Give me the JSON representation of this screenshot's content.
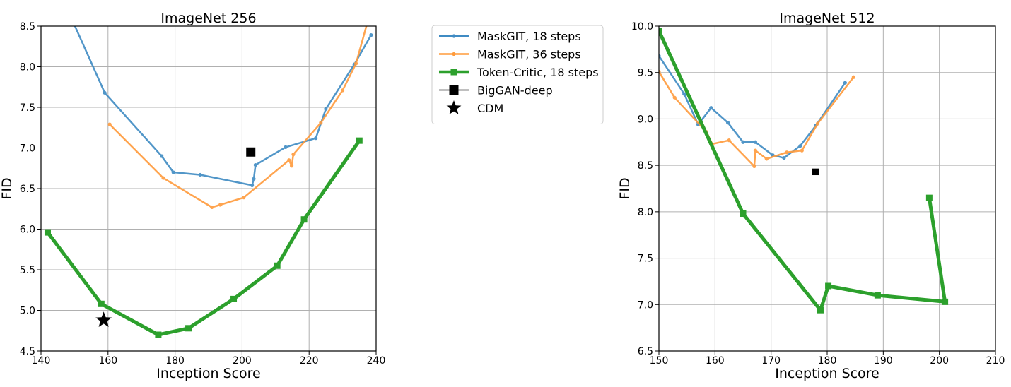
{
  "chart_data": [
    {
      "type": "line",
      "title": "ImageNet 256",
      "xlabel": "Inception Score",
      "ylabel": "FID",
      "xlim": [
        140,
        240
      ],
      "ylim": [
        4.5,
        8.5
      ],
      "xticks": [
        140,
        160,
        180,
        200,
        220,
        240
      ],
      "yticks": [
        4.5,
        5.0,
        5.5,
        6.0,
        6.5,
        7.0,
        7.5,
        8.0,
        8.5
      ],
      "xtick_labels": [
        "140",
        "160",
        "180",
        "200",
        "220",
        "240"
      ],
      "ytick_labels": [
        "4.5",
        "5.0",
        "5.5",
        "6.0",
        "6.5",
        "7.0",
        "7.5",
        "8.0",
        "8.5"
      ],
      "grid": true,
      "series": [
        {
          "name": "MaskGIT, 18 steps",
          "color": "#3f8bc3",
          "marker": "circle",
          "points": [
            [
              149.5,
              8.56
            ],
            [
              159.0,
              7.68
            ],
            [
              176.0,
              6.9
            ],
            [
              179.5,
              6.7
            ],
            [
              187.5,
              6.67
            ],
            [
              203.0,
              6.54
            ],
            [
              203.5,
              6.62
            ],
            [
              204.0,
              6.79
            ],
            [
              213.0,
              7.01
            ],
            [
              222.0,
              7.12
            ],
            [
              225.0,
              7.48
            ],
            [
              233.5,
              8.03
            ],
            [
              238.5,
              8.39
            ]
          ]
        },
        {
          "name": "MaskGIT, 36 steps",
          "color": "#ff9b3c",
          "marker": "circle",
          "points": [
            [
              160.5,
              7.29
            ],
            [
              176.5,
              6.63
            ],
            [
              191.0,
              6.27
            ],
            [
              193.5,
              6.3
            ],
            [
              200.5,
              6.39
            ],
            [
              214.0,
              6.85
            ],
            [
              214.8,
              6.78
            ],
            [
              215.3,
              6.92
            ],
            [
              223.5,
              7.31
            ],
            [
              230.0,
              7.71
            ],
            [
              234.0,
              8.04
            ],
            [
              237.5,
              8.56
            ]
          ]
        },
        {
          "name": "Token-Critic, 18 steps",
          "color": "#2ca02c",
          "marker": "square",
          "points": [
            [
              142.0,
              5.96
            ],
            [
              158.0,
              5.08
            ],
            [
              175.0,
              4.7
            ],
            [
              184.0,
              4.78
            ],
            [
              197.5,
              5.14
            ],
            [
              210.5,
              5.55
            ],
            [
              218.5,
              6.12
            ],
            [
              235.0,
              7.09
            ]
          ]
        },
        {
          "name": "BigGAN-deep",
          "color": "#000000",
          "marker": "square",
          "points": [
            [
              202.6,
              6.95
            ]
          ]
        },
        {
          "name": "CDM",
          "color": "#000000",
          "marker": "star",
          "points": [
            [
              158.7,
              4.88
            ]
          ]
        }
      ]
    },
    {
      "type": "line",
      "title": "ImageNet 512",
      "xlabel": "Inception Score",
      "ylabel": "FID",
      "xlim": [
        150,
        210
      ],
      "ylim": [
        6.5,
        10.0
      ],
      "xticks": [
        150,
        160,
        170,
        180,
        190,
        200,
        210
      ],
      "yticks": [
        6.5,
        7.0,
        7.5,
        8.0,
        8.5,
        9.0,
        9.5,
        10.0
      ],
      "xtick_labels": [
        "150",
        "160",
        "170",
        "180",
        "190",
        "200",
        "210"
      ],
      "ytick_labels": [
        "6.5",
        "7.0",
        "7.5",
        "8.0",
        "8.5",
        "9.0",
        "9.5",
        "10.0"
      ],
      "grid": true,
      "series": [
        {
          "name": "MaskGIT, 18 steps",
          "color": "#3f8bc3",
          "marker": "circle",
          "points": [
            [
              150.0,
              9.68
            ],
            [
              154.5,
              9.27
            ],
            [
              157.0,
              8.94
            ],
            [
              159.3,
              9.12
            ],
            [
              162.3,
              8.96
            ],
            [
              165.0,
              8.75
            ],
            [
              167.2,
              8.75
            ],
            [
              170.3,
              8.61
            ],
            [
              172.3,
              8.58
            ],
            [
              175.2,
              8.71
            ],
            [
              178.0,
              8.93
            ],
            [
              183.2,
              9.39
            ]
          ]
        },
        {
          "name": "MaskGIT, 36 steps",
          "color": "#ff9b3c",
          "marker": "circle",
          "points": [
            [
              150.0,
              9.51
            ],
            [
              152.8,
              9.23
            ],
            [
              158.5,
              8.86
            ],
            [
              159.5,
              8.73
            ],
            [
              162.5,
              8.77
            ],
            [
              167.0,
              8.49
            ],
            [
              167.2,
              8.66
            ],
            [
              169.2,
              8.57
            ],
            [
              172.8,
              8.64
            ],
            [
              175.5,
              8.66
            ],
            [
              178.3,
              8.95
            ],
            [
              184.7,
              9.45
            ]
          ]
        },
        {
          "name": "Token-Critic, 18 steps",
          "color": "#2ca02c",
          "marker": "square",
          "points": [
            [
              150.0,
              9.95
            ],
            [
              165.0,
              7.98
            ],
            [
              178.8,
              6.94
            ],
            [
              180.2,
              7.2
            ],
            [
              189.0,
              7.1
            ],
            [
              201.0,
              7.03
            ],
            [
              198.2,
              8.15
            ]
          ]
        },
        {
          "name": "BigGAN-deep",
          "color": "#000000",
          "marker": "square",
          "points": [
            [
              177.9,
              8.43
            ]
          ]
        }
      ]
    }
  ],
  "legend": {
    "placement": "between panels, top",
    "entries": [
      {
        "label": "MaskGIT, 18 steps",
        "color": "#3f8bc3",
        "marker": "circle-line"
      },
      {
        "label": "MaskGIT, 36 steps",
        "color": "#ff9b3c",
        "marker": "circle-line"
      },
      {
        "label": "Token-Critic, 18 steps",
        "color": "#2ca02c",
        "marker": "square-line"
      },
      {
        "label": "BigGAN-deep",
        "color": "#000000",
        "marker": "square-line"
      },
      {
        "label": "CDM",
        "color": "#000000",
        "marker": "star"
      }
    ]
  }
}
